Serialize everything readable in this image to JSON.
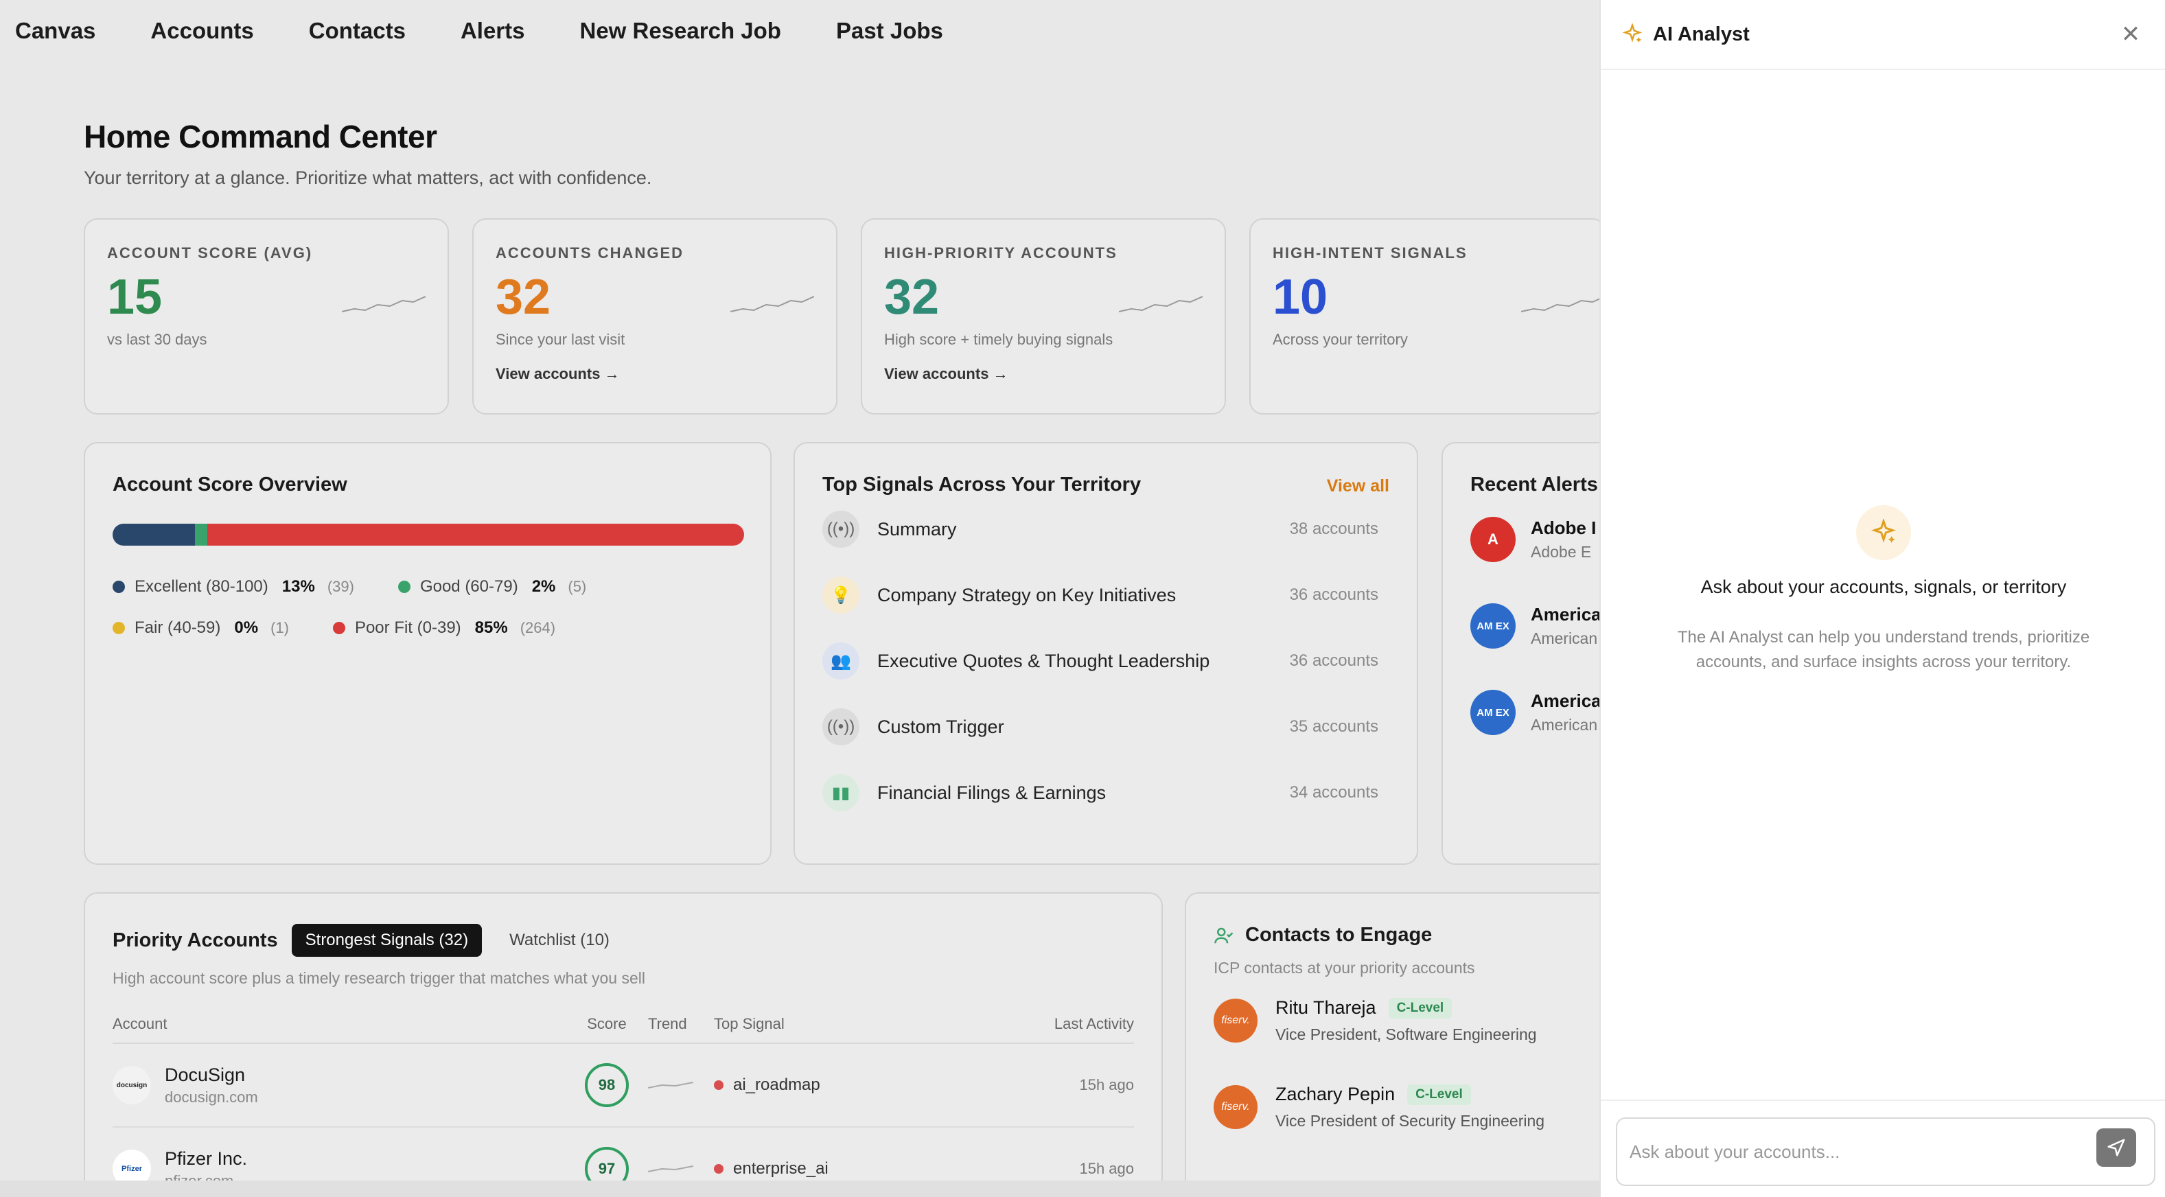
{
  "nav": {
    "items": [
      "Canvas",
      "Accounts",
      "Contacts",
      "Alerts",
      "New Research Job",
      "Past Jobs"
    ]
  },
  "page": {
    "title": "Home Command Center",
    "subtitle": "Your territory at a glance. Prioritize what matters, act with confidence."
  },
  "kpis": [
    {
      "label": "ACCOUNT SCORE (AVG)",
      "value": "15",
      "sub": "vs last 30 days",
      "link": "",
      "color": "#2f8a4f"
    },
    {
      "label": "ACCOUNTS CHANGED",
      "value": "32",
      "sub": "Since your last visit",
      "link": "View accounts →",
      "color": "#e07a1f"
    },
    {
      "label": "HIGH-PRIORITY ACCOUNTS",
      "value": "32",
      "sub": "High score + timely buying signals",
      "link": "View accounts →",
      "color": "#2f8a76"
    },
    {
      "label": "HIGH-INTENT SIGNALS",
      "value": "10",
      "sub": "Across your territory",
      "link": "",
      "color": "#2a4fd0"
    }
  ],
  "score_overview": {
    "title": "Account Score Overview",
    "segments": [
      {
        "label": "Excellent (80-100)",
        "pct": "13%",
        "count": "(39)",
        "fraction": 0.13,
        "color": "#28476b"
      },
      {
        "label": "Good (60-79)",
        "pct": "2%",
        "count": "(5)",
        "fraction": 0.02,
        "color": "#3aa36b"
      },
      {
        "label": "Fair (40-59)",
        "pct": "0%",
        "count": "(1)",
        "fraction": 0.0,
        "color": "#e2b52a"
      },
      {
        "label": "Poor Fit (0-39)",
        "pct": "85%",
        "count": "(264)",
        "fraction": 0.85,
        "color": "#d93a3a"
      }
    ]
  },
  "signals": {
    "title": "Top Signals Across Your Territory",
    "view_all": "View all",
    "items": [
      {
        "name": "Summary",
        "count": "38 accounts",
        "icon": "broadcast-icon",
        "bg": "#dcdcdc",
        "fg": "#666"
      },
      {
        "name": "Company Strategy on Key Initiatives",
        "count": "36 accounts",
        "icon": "lightbulb-icon",
        "bg": "#f6ead0",
        "fg": "#d49a1e"
      },
      {
        "name": "Executive Quotes & Thought Leadership",
        "count": "36 accounts",
        "icon": "people-icon",
        "bg": "#dde2f0",
        "fg": "#4a63b8"
      },
      {
        "name": "Custom Trigger",
        "count": "35 accounts",
        "icon": "broadcast-icon",
        "bg": "#dcdcdc",
        "fg": "#666"
      },
      {
        "name": "Financial Filings & Earnings",
        "count": "34 accounts",
        "icon": "bar-chart-icon",
        "bg": "#dcebdf",
        "fg": "#3aa36b"
      }
    ]
  },
  "alerts": {
    "title": "Recent Alerts",
    "items": [
      {
        "t1": "Adobe I",
        "t2": "Adobe E",
        "logo": "A",
        "bg": "#d8312b"
      },
      {
        "t1": "America",
        "t2": "American",
        "logo": "AM EX",
        "bg": "#2c6bc9"
      },
      {
        "t1": "America",
        "t2": "American",
        "logo": "AM EX",
        "bg": "#2c6bc9"
      }
    ]
  },
  "priority": {
    "title": "Priority Accounts",
    "tabs": [
      "Strongest Signals (32)",
      "Watchlist (10)"
    ],
    "subtitle": "High account score plus a timely research trigger that matches what you sell",
    "columns": [
      "Account",
      "Score",
      "Trend",
      "Top Signal",
      "Last Activity"
    ],
    "rows": [
      {
        "name": "DocuSign",
        "domain": "docusign.com",
        "score": "98",
        "signal": "ai_roadmap",
        "last": "15h ago",
        "logo": "docusign"
      },
      {
        "name": "Pfizer Inc.",
        "domain": "pfizer.com",
        "score": "97",
        "signal": "enterprise_ai",
        "last": "15h ago",
        "logo": "Pfizer"
      }
    ]
  },
  "contacts": {
    "title": "Contacts to Engage",
    "subtitle": "ICP contacts at your priority accounts",
    "items": [
      {
        "name": "Ritu Thareja",
        "badge": "C-Level",
        "role": "Vice President, Software Engineering",
        "logo": "fiserv."
      },
      {
        "name": "Zachary Pepin",
        "badge": "C-Level",
        "role": "Vice President of Security Engineering",
        "logo": "fiserv."
      }
    ]
  },
  "ai": {
    "title": "AI Analyst",
    "heading": "Ask about your accounts, signals, or territory",
    "body": "The AI Analyst can help you understand trends, prioritize accounts, and surface insights across your territory.",
    "placeholder": "Ask about your accounts..."
  }
}
